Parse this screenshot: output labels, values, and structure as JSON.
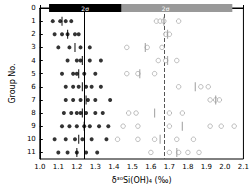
{
  "chart_data": {
    "type": "scatter",
    "x_label": "δ³⁰Si(OH)₄ (‰)",
    "y_label": "Group No.",
    "xlim": [
      1.0,
      2.1
    ],
    "xticks": [
      {
        "value": 1.0,
        "label": "1.0"
      },
      1.1,
      1.2,
      1.3,
      1.4,
      1.5,
      1.6,
      1.7,
      1.8,
      1.9,
      {
        "value": 2.0,
        "label": "2.0"
      },
      2.1
    ],
    "ylim": [
      0,
      11.5
    ],
    "yticks": [
      0,
      1,
      2,
      3,
      4,
      5,
      6,
      7,
      8,
      9,
      10,
      11
    ],
    "grid": false,
    "series": [
      {
        "color": "#000000",
        "marker": "circle",
        "x": [
          1.07,
          1.11,
          1.14,
          1.17,
          1.08,
          1.12,
          1.15,
          1.19,
          1.21,
          1.1,
          1.16,
          1.22,
          1.27,
          1.15,
          1.2,
          1.22,
          1.27,
          1.33,
          1.12,
          1.18,
          1.2,
          1.24,
          1.3,
          1.14,
          1.18,
          1.21,
          1.25,
          1.28,
          1.33,
          1.14,
          1.18,
          1.22,
          1.26,
          1.3,
          1.38,
          1.13,
          1.17,
          1.2,
          1.22,
          1.25,
          1.3,
          1.34,
          1.12,
          1.16,
          1.2,
          1.24,
          1.27,
          1.32,
          1.37,
          1.08,
          1.14,
          1.19,
          1.23,
          1.28,
          1.36,
          1.1,
          1.15,
          1.2,
          1.25,
          1.31
        ],
        "values": [
          1,
          1,
          1,
          1,
          2,
          2,
          2,
          2,
          2,
          3,
          3,
          3,
          3,
          4,
          4,
          4,
          4,
          4,
          5,
          5,
          5,
          5,
          5,
          6,
          6,
          6,
          6,
          6,
          6,
          7,
          7,
          7,
          7,
          7,
          7,
          8,
          8,
          8,
          8,
          8,
          8,
          8,
          9,
          9,
          9,
          9,
          9,
          9,
          9,
          10,
          10,
          10,
          10,
          10,
          10,
          11,
          11,
          11,
          11,
          11
        ]
      },
      {
        "color": "#999999",
        "marker": "open_circle",
        "x": [
          1.63,
          1.65,
          1.67,
          1.75,
          1.68,
          1.7,
          1.47,
          1.58,
          1.66,
          1.64,
          1.68,
          1.74,
          1.47,
          1.53,
          1.62,
          1.75,
          1.87,
          1.91,
          1.92,
          1.95,
          1.97,
          1.48,
          1.52,
          1.7,
          1.77,
          1.45,
          1.53,
          1.7,
          1.92,
          1.98,
          2.05,
          1.42,
          1.53,
          1.62,
          1.74,
          1.83,
          1.6,
          1.7,
          1.75,
          1.8,
          1.86
        ],
        "values": [
          1,
          1,
          1,
          1,
          2,
          2,
          3,
          3,
          3,
          4,
          4,
          4,
          5,
          5,
          5,
          6,
          6,
          6,
          7,
          7,
          7,
          8,
          8,
          8,
          8,
          9,
          9,
          9,
          9,
          9,
          9,
          10,
          10,
          10,
          10,
          10,
          11,
          11,
          11,
          11,
          11
        ]
      },
      {
        "color": "#000000",
        "marker": "vline",
        "x": [
          1.12,
          1.15,
          1.19,
          1.23,
          1.21,
          1.23,
          1.25,
          1.23,
          1.24,
          1.21,
          1.2
        ],
        "values": [
          1,
          2,
          3,
          4,
          5,
          6,
          7,
          8,
          9,
          10,
          11
        ]
      },
      {
        "color": "#999999",
        "marker": "vline",
        "x": [
          1.67,
          1.69,
          1.57,
          1.69,
          1.54,
          1.84,
          1.95,
          1.62,
          1.77,
          1.65,
          1.74
        ],
        "values": [
          1,
          2,
          3,
          4,
          5,
          6,
          7,
          8,
          9,
          10,
          11
        ]
      }
    ],
    "ref_lines": [
      {
        "x": 1.24,
        "color": "#000000",
        "line_style": "solid"
      },
      {
        "x": 1.67,
        "color": "#555555",
        "line_style": "dashed"
      }
    ],
    "bands": [
      {
        "from": 1.32,
        "to": 2.04,
        "y": 0,
        "label": "2σ",
        "color": "#999999"
      },
      {
        "from": 1.05,
        "to": 1.44,
        "y": 0,
        "label": "2σ",
        "color": "#000000"
      }
    ]
  }
}
